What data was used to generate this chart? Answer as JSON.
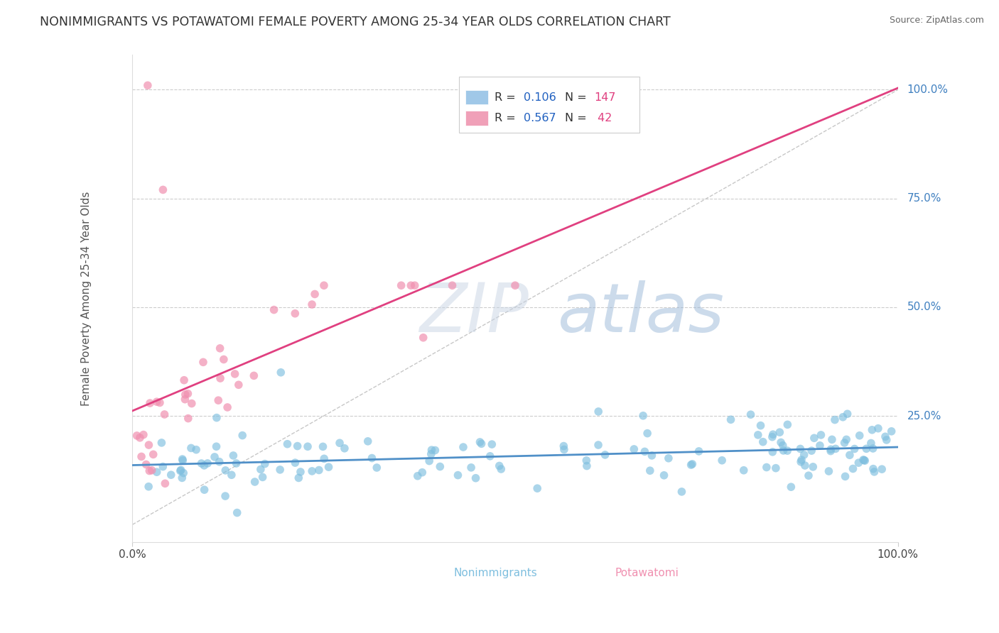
{
  "title": "NONIMMIGRANTS VS POTAWATOMI FEMALE POVERTY AMONG 25-34 YEAR OLDS CORRELATION CHART",
  "source": "Source: ZipAtlas.com",
  "ylabel": "Female Poverty Among 25-34 Year Olds",
  "xlim": [
    0,
    1
  ],
  "ylim": [
    0,
    1
  ],
  "grid_color": "#cccccc",
  "background_color": "#ffffff",
  "nonimmigrants_color": "#7fbfdf",
  "potawatomi_color": "#f090b0",
  "nonimmigrants_R": 0.106,
  "nonimmigrants_N": 147,
  "potawatomi_R": 0.567,
  "potawatomi_N": 42,
  "nonimmigrants_line_color": "#5090c8",
  "potawatomi_line_color": "#e04080",
  "diagonal_line_color": "#b0b0b0",
  "legend_R_color": "#2060c0",
  "legend_N_color": "#e04080",
  "right_axis_color": "#4080c0",
  "title_color": "#333333",
  "source_color": "#666666",
  "ylabel_color": "#555555"
}
